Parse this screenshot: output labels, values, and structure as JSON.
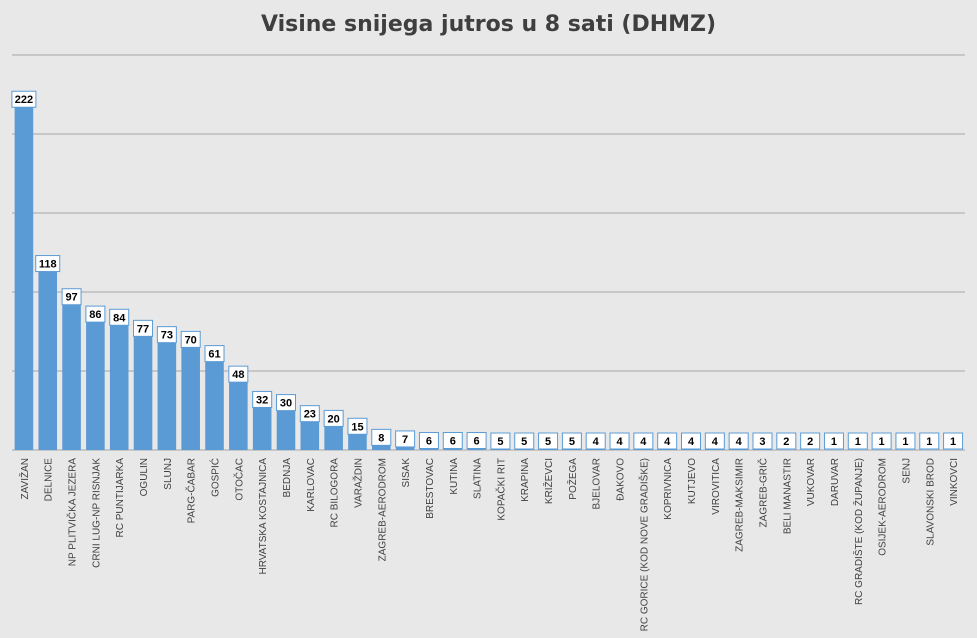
{
  "chart_data": {
    "type": "bar",
    "title": "Visine snijega jutros u 8 sati (DHMZ)",
    "xlabel": "",
    "ylabel": "",
    "ylim": [
      0,
      250
    ],
    "grid": true,
    "colors": {
      "bar": "#5b9bd5",
      "bar_top": "#9dc3e6",
      "grid": "#a6a6a6",
      "label_border": "#5b9bd5",
      "text": "#404040"
    },
    "categories": [
      "ZAVIŽAN",
      "DELNICE",
      "NP PLITVIČKA JEZERA",
      "CRNI LUG-NP RISNJAK",
      "RC PUNTIJARKA",
      "OGULIN",
      "SLUNJ",
      "PARG-ČABAR",
      "GOSPIĆ",
      "OTOČAC",
      "HRVATSKA KOSTAJNICA",
      "BEDNJA",
      "KARLOVAC",
      "RC BILOGORA",
      "VARAŽDIN",
      "ZAGREB-AERODROM",
      "SISAK",
      "BRESTOVAC",
      "KUTINA",
      "SLATINA",
      "KOPAČKI RIT",
      "KRAPINA",
      "KRIŽEVCI",
      "POŽEGA",
      "BJELOVAR",
      "ĐAKOVO",
      "RC GORICE (KOD NOVE GRADIŠKE)",
      "KOPRIVNICA",
      "KUTJEVO",
      "VIROVITICA",
      "ZAGREB-MAKSIMIR",
      "ZAGREB-GRIČ",
      "BELI MANASTIR",
      "VUKOVAR",
      "DARUVAR",
      "RC GRADIŠTE (KOD ŽUPANJE)",
      "OSIJEK-AERODROM",
      "SENJ",
      "SLAVONSKI BROD",
      "VINKOVCI"
    ],
    "values": [
      222,
      118,
      97,
      86,
      84,
      77,
      73,
      70,
      61,
      48,
      32,
      30,
      23,
      20,
      15,
      8,
      7,
      6,
      6,
      6,
      5,
      5,
      5,
      5,
      4,
      4,
      4,
      4,
      4,
      4,
      4,
      3,
      2,
      2,
      1,
      1,
      1,
      1,
      1,
      1
    ]
  }
}
